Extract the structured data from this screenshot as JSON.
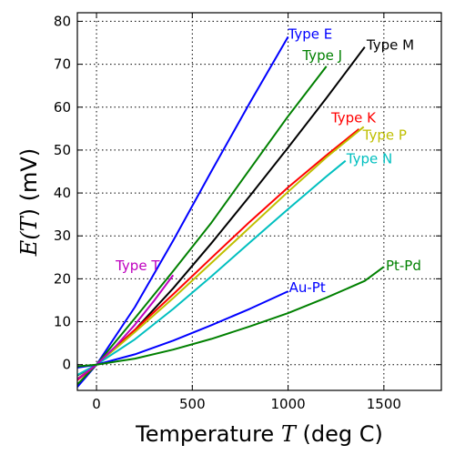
{
  "chart_data": {
    "type": "line",
    "title": "",
    "xlabel": {
      "prefix": "Temperature ",
      "symbol": "T",
      "suffix": " (deg C)"
    },
    "ylabel": {
      "prefix": "E(",
      "symbol": "T",
      "suffix": ") (mV)"
    },
    "xlim": [
      -100,
      1800
    ],
    "ylim": [
      -6,
      82
    ],
    "xticks": [
      0,
      500,
      1000,
      1500
    ],
    "yticks": [
      0,
      10,
      20,
      30,
      40,
      50,
      60,
      70,
      80
    ],
    "grid": true,
    "series": [
      {
        "name": "Type E",
        "color": "#0000ff",
        "label_at": [
          1000,
          77
        ],
        "points": [
          [
            -100,
            -5.2
          ],
          [
            0,
            0
          ],
          [
            200,
            13.4
          ],
          [
            400,
            28.9
          ],
          [
            600,
            45.1
          ],
          [
            800,
            61
          ],
          [
            1000,
            76.4
          ]
        ]
      },
      {
        "name": "Type J",
        "color": "#008000",
        "label_at": [
          1075,
          72
        ],
        "points": [
          [
            -100,
            -4.6
          ],
          [
            0,
            0
          ],
          [
            200,
            10.8
          ],
          [
            400,
            21.8
          ],
          [
            600,
            33.1
          ],
          [
            800,
            45.5
          ],
          [
            1000,
            57.9
          ],
          [
            1200,
            69.5
          ]
        ]
      },
      {
        "name": "Type M",
        "color": "#000000",
        "label_at": [
          1410,
          74.5
        ],
        "points": [
          [
            -100,
            -2.5
          ],
          [
            0,
            0
          ],
          [
            200,
            8.1
          ],
          [
            400,
            17.8
          ],
          [
            600,
            28.3
          ],
          [
            800,
            39.3
          ],
          [
            1000,
            50.6
          ],
          [
            1200,
            62.1
          ],
          [
            1400,
            74
          ]
        ]
      },
      {
        "name": "Type K",
        "color": "#ff0000",
        "label_at": [
          1225,
          57.5
        ],
        "points": [
          [
            -100,
            -3.6
          ],
          [
            0,
            0
          ],
          [
            200,
            8.1
          ],
          [
            400,
            16.4
          ],
          [
            600,
            24.9
          ],
          [
            800,
            33.3
          ],
          [
            1000,
            41.3
          ],
          [
            1200,
            48.8
          ],
          [
            1370,
            54.9
          ]
        ]
      },
      {
        "name": "Type P",
        "color": "#bfbf00",
        "label_at": [
          1390,
          53.5
        ],
        "points": [
          [
            -100,
            -3.3
          ],
          [
            0,
            0
          ],
          [
            200,
            7.6
          ],
          [
            400,
            15.5
          ],
          [
            600,
            23.7
          ],
          [
            800,
            32
          ],
          [
            1000,
            40.3
          ],
          [
            1200,
            48.3
          ],
          [
            1395,
            55.4
          ]
        ]
      },
      {
        "name": "Type N",
        "color": "#00bfbf",
        "label_at": [
          1305,
          48
        ],
        "points": [
          [
            -100,
            -2.4
          ],
          [
            0,
            0
          ],
          [
            200,
            5.9
          ],
          [
            400,
            12.97
          ],
          [
            600,
            20.6
          ],
          [
            800,
            28.46
          ],
          [
            1000,
            36.26
          ],
          [
            1200,
            43.85
          ],
          [
            1300,
            47.5
          ]
        ]
      },
      {
        "name": "Type T",
        "color": "#bf00bf",
        "label_at": [
          100,
          23
        ],
        "points": [
          [
            -100,
            -3.4
          ],
          [
            0,
            0
          ],
          [
            100,
            4.28
          ],
          [
            200,
            9.29
          ],
          [
            300,
            14.86
          ],
          [
            400,
            20.87
          ]
        ]
      },
      {
        "name": "Au-Pt",
        "color": "#0000ff",
        "label_at": [
          1005,
          18
        ],
        "points": [
          [
            -100,
            -0.7
          ],
          [
            0,
            0
          ],
          [
            200,
            2.4
          ],
          [
            400,
            5.6
          ],
          [
            600,
            9.2
          ],
          [
            800,
            13
          ],
          [
            1000,
            17.1
          ]
        ]
      },
      {
        "name": "Pt-Pd",
        "color": "#008000",
        "label_at": [
          1510,
          23
        ],
        "points": [
          [
            -100,
            -0.4
          ],
          [
            0,
            0
          ],
          [
            200,
            1.4
          ],
          [
            400,
            3.5
          ],
          [
            600,
            6
          ],
          [
            800,
            8.9
          ],
          [
            1000,
            12
          ],
          [
            1200,
            15.6
          ],
          [
            1400,
            19.5
          ],
          [
            1500,
            22.8
          ]
        ]
      }
    ]
  }
}
